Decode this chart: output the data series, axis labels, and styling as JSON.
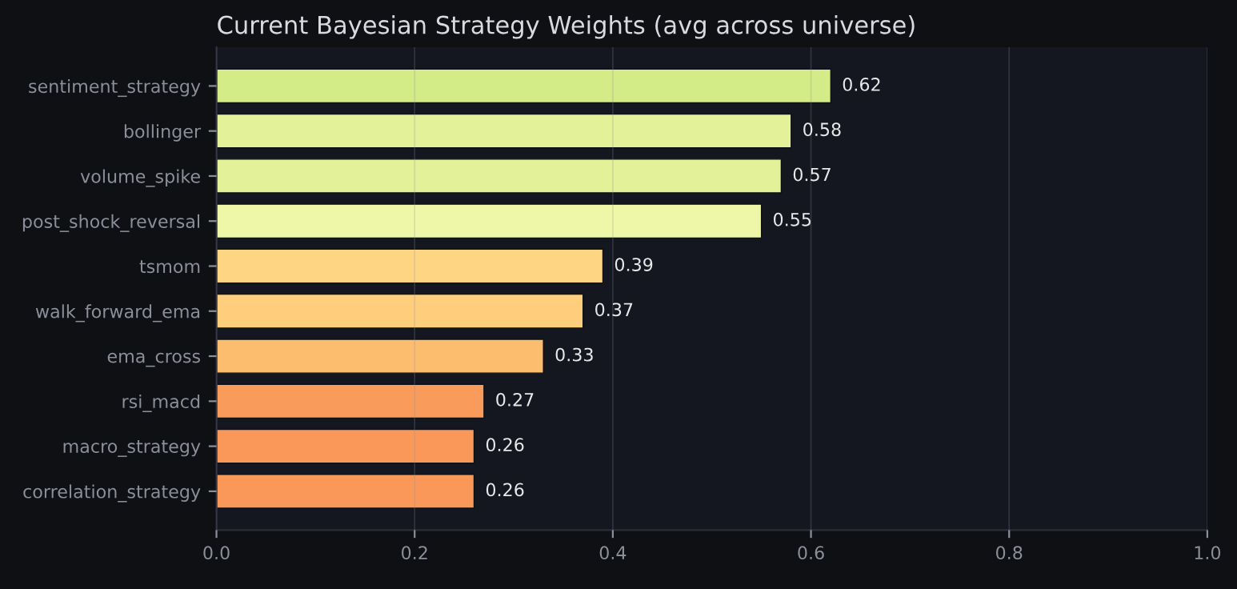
{
  "chart_data": {
    "type": "bar",
    "orientation": "horizontal",
    "title": "Current Bayesian Strategy Weights (avg across universe)",
    "categories": [
      "sentiment_strategy",
      "bollinger",
      "volume_spike",
      "post_shock_reversal",
      "tsmom",
      "walk_forward_ema",
      "ema_cross",
      "rsi_macd",
      "macro_strategy",
      "correlation_strategy"
    ],
    "values": [
      0.62,
      0.58,
      0.57,
      0.55,
      0.39,
      0.37,
      0.33,
      0.27,
      0.26,
      0.26
    ],
    "colors": [
      "#d3ec87",
      "#e3f298",
      "#e3f298",
      "#eef7a8",
      "#fed683",
      "#fece7c",
      "#fdbd6f",
      "#f99b5a",
      "#f99858",
      "#f99858"
    ],
    "xlim": [
      0,
      1.0
    ],
    "xticks": [
      {
        "value": 0,
        "label": "0.0"
      },
      0.2,
      0.4,
      0.6,
      0.8,
      {
        "value": 1,
        "label": "1.0"
      }
    ],
    "grid": "x",
    "data_labels": true
  }
}
